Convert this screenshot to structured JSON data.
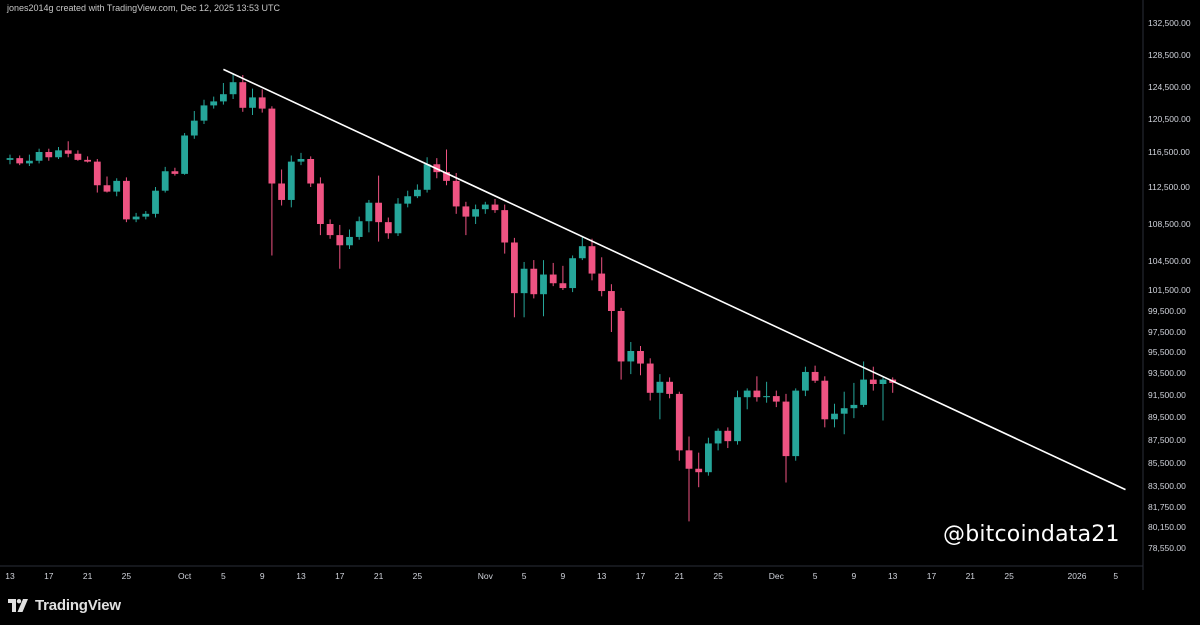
{
  "header": {
    "note": "jones2014g created with TradingView.com, Dec 12, 2025 13:53 UTC"
  },
  "watermark": {
    "handle": "@bitcoindata21"
  },
  "footer": {
    "brand": "TradingView",
    "logo_icon": "tradingview-logo-icon"
  },
  "colors": {
    "up": "#26a69a",
    "down": "#ef5382",
    "trendline": "#ffffff",
    "background": "#000000",
    "text": "#d1d4dc"
  },
  "chart_data": {
    "type": "candlestick",
    "title": "",
    "xlabel": "",
    "ylabel": "",
    "ylim": [
      76500,
      134500
    ],
    "y_ticks": [
      {
        "label": "132,500.00",
        "value": 132500
      },
      {
        "label": "128,500.00",
        "value": 128500
      },
      {
        "label": "124,500.00",
        "value": 124500
      },
      {
        "label": "120,500.00",
        "value": 120500
      },
      {
        "label": "116,500.00",
        "value": 116500
      },
      {
        "label": "112,500.00",
        "value": 112500
      },
      {
        "label": "108,500.00",
        "value": 108500
      },
      {
        "label": "104,500.00",
        "value": 104500
      },
      {
        "label": "101,500.00",
        "value": 101500
      },
      {
        "label": "99,500.00",
        "value": 99500
      },
      {
        "label": "97,500.00",
        "value": 97500
      },
      {
        "label": "95,500.00",
        "value": 95500
      },
      {
        "label": "93,500.00",
        "value": 93500
      },
      {
        "label": "91,500.00",
        "value": 91500
      },
      {
        "label": "89,500.00",
        "value": 89500
      },
      {
        "label": "87,500.00",
        "value": 87500
      },
      {
        "label": "85,500.00",
        "value": 85500
      },
      {
        "label": "83,500.00",
        "value": 83500
      },
      {
        "label": "81,750.00",
        "value": 81750
      },
      {
        "label": "80,150.00",
        "value": 80150
      },
      {
        "label": "78,550.00",
        "value": 78550
      }
    ],
    "x_ticks": [
      {
        "label": "13",
        "day": 0
      },
      {
        "label": "17",
        "day": 4
      },
      {
        "label": "21",
        "day": 8
      },
      {
        "label": "25",
        "day": 12
      },
      {
        "label": "Oct",
        "day": 18
      },
      {
        "label": "5",
        "day": 22
      },
      {
        "label": "9",
        "day": 26
      },
      {
        "label": "13",
        "day": 30
      },
      {
        "label": "17",
        "day": 34
      },
      {
        "label": "21",
        "day": 38
      },
      {
        "label": "25",
        "day": 42
      },
      {
        "label": "Nov",
        "day": 49
      },
      {
        "label": "5",
        "day": 53
      },
      {
        "label": "9",
        "day": 57
      },
      {
        "label": "13",
        "day": 61
      },
      {
        "label": "17",
        "day": 65
      },
      {
        "label": "21",
        "day": 69
      },
      {
        "label": "25",
        "day": 73
      },
      {
        "label": "Dec",
        "day": 79
      },
      {
        "label": "5",
        "day": 83
      },
      {
        "label": "9",
        "day": 87
      },
      {
        "label": "13",
        "day": 91
      },
      {
        "label": "17",
        "day": 95
      },
      {
        "label": "21",
        "day": 99
      },
      {
        "label": "25",
        "day": 103
      },
      {
        "label": "2026",
        "day": 110
      },
      {
        "label": "5",
        "day": 114
      }
    ],
    "candles": [
      {
        "day": 0,
        "o": 115600,
        "h": 116200,
        "l": 115100,
        "c": 115800
      },
      {
        "day": 1,
        "o": 115800,
        "h": 116100,
        "l": 115000,
        "c": 115200
      },
      {
        "day": 2,
        "o": 115200,
        "h": 116200,
        "l": 114900,
        "c": 115500
      },
      {
        "day": 3,
        "o": 115500,
        "h": 116900,
        "l": 115200,
        "c": 116500
      },
      {
        "day": 4,
        "o": 116500,
        "h": 116900,
        "l": 115500,
        "c": 115900
      },
      {
        "day": 5,
        "o": 115900,
        "h": 117100,
        "l": 115700,
        "c": 116700
      },
      {
        "day": 6,
        "o": 116700,
        "h": 117800,
        "l": 115900,
        "c": 116300
      },
      {
        "day": 7,
        "o": 116300,
        "h": 116700,
        "l": 115500,
        "c": 115600
      },
      {
        "day": 8,
        "o": 115600,
        "h": 116000,
        "l": 115300,
        "c": 115400
      },
      {
        "day": 9,
        "o": 115400,
        "h": 115700,
        "l": 111900,
        "c": 112700
      },
      {
        "day": 10,
        "o": 112700,
        "h": 113700,
        "l": 111900,
        "c": 112000
      },
      {
        "day": 11,
        "o": 112000,
        "h": 113500,
        "l": 111500,
        "c": 113200
      },
      {
        "day": 12,
        "o": 113200,
        "h": 113600,
        "l": 108700,
        "c": 109000
      },
      {
        "day": 13,
        "o": 109000,
        "h": 109700,
        "l": 108700,
        "c": 109300
      },
      {
        "day": 14,
        "o": 109300,
        "h": 109900,
        "l": 109000,
        "c": 109600
      },
      {
        "day": 15,
        "o": 109600,
        "h": 112500,
        "l": 109200,
        "c": 112100
      },
      {
        "day": 16,
        "o": 112100,
        "h": 114800,
        "l": 111900,
        "c": 114300
      },
      {
        "day": 17,
        "o": 114300,
        "h": 114700,
        "l": 113800,
        "c": 114000
      },
      {
        "day": 18,
        "o": 114000,
        "h": 118800,
        "l": 113900,
        "c": 118500
      },
      {
        "day": 19,
        "o": 118500,
        "h": 121500,
        "l": 118100,
        "c": 120300
      },
      {
        "day": 20,
        "o": 120300,
        "h": 122900,
        "l": 119900,
        "c": 122200
      },
      {
        "day": 21,
        "o": 122200,
        "h": 123300,
        "l": 121800,
        "c": 122700
      },
      {
        "day": 22,
        "o": 122700,
        "h": 125000,
        "l": 122300,
        "c": 123600
      },
      {
        "day": 23,
        "o": 123600,
        "h": 126200,
        "l": 123000,
        "c": 125100
      },
      {
        "day": 24,
        "o": 125100,
        "h": 126000,
        "l": 121400,
        "c": 121900
      },
      {
        "day": 25,
        "o": 121900,
        "h": 124300,
        "l": 121000,
        "c": 123200
      },
      {
        "day": 26,
        "o": 123200,
        "h": 124200,
        "l": 121300,
        "c": 121800
      },
      {
        "day": 27,
        "o": 121800,
        "h": 122100,
        "l": 105100,
        "c": 112900
      },
      {
        "day": 28,
        "o": 112900,
        "h": 114500,
        "l": 110500,
        "c": 111100
      },
      {
        "day": 29,
        "o": 111100,
        "h": 116100,
        "l": 110300,
        "c": 115400
      },
      {
        "day": 30,
        "o": 115400,
        "h": 116400,
        "l": 115000,
        "c": 115700
      },
      {
        "day": 31,
        "o": 115700,
        "h": 116000,
        "l": 112500,
        "c": 112900
      },
      {
        "day": 32,
        "o": 112900,
        "h": 113600,
        "l": 107300,
        "c": 108500
      },
      {
        "day": 33,
        "o": 108500,
        "h": 109000,
        "l": 106900,
        "c": 107300
      },
      {
        "day": 34,
        "o": 107300,
        "h": 108400,
        "l": 103700,
        "c": 106200
      },
      {
        "day": 35,
        "o": 106200,
        "h": 107900,
        "l": 105800,
        "c": 107100
      },
      {
        "day": 36,
        "o": 107100,
        "h": 109300,
        "l": 106800,
        "c": 108800
      },
      {
        "day": 37,
        "o": 108800,
        "h": 111100,
        "l": 107600,
        "c": 110800
      },
      {
        "day": 38,
        "o": 110800,
        "h": 113800,
        "l": 106600,
        "c": 108700
      },
      {
        "day": 39,
        "o": 108700,
        "h": 109200,
        "l": 106900,
        "c": 107500
      },
      {
        "day": 40,
        "o": 107500,
        "h": 111300,
        "l": 107200,
        "c": 110700
      },
      {
        "day": 41,
        "o": 110700,
        "h": 112100,
        "l": 110300,
        "c": 111500
      },
      {
        "day": 42,
        "o": 111500,
        "h": 112800,
        "l": 111300,
        "c": 112200
      },
      {
        "day": 43,
        "o": 112200,
        "h": 115900,
        "l": 111900,
        "c": 115100
      },
      {
        "day": 44,
        "o": 115100,
        "h": 115800,
        "l": 113500,
        "c": 114200
      },
      {
        "day": 45,
        "o": 114200,
        "h": 116800,
        "l": 112700,
        "c": 113200
      },
      {
        "day": 46,
        "o": 113200,
        "h": 114100,
        "l": 109600,
        "c": 110400
      },
      {
        "day": 47,
        "o": 110400,
        "h": 110900,
        "l": 107300,
        "c": 109300
      },
      {
        "day": 48,
        "o": 109300,
        "h": 110600,
        "l": 108500,
        "c": 110100
      },
      {
        "day": 49,
        "o": 110100,
        "h": 110900,
        "l": 109600,
        "c": 110600
      },
      {
        "day": 50,
        "o": 110600,
        "h": 111200,
        "l": 109700,
        "c": 110000
      },
      {
        "day": 51,
        "o": 110000,
        "h": 110600,
        "l": 105300,
        "c": 106500
      },
      {
        "day": 52,
        "o": 106500,
        "h": 107000,
        "l": 98900,
        "c": 101200
      },
      {
        "day": 53,
        "o": 101200,
        "h": 104400,
        "l": 98900,
        "c": 103700
      },
      {
        "day": 54,
        "o": 103700,
        "h": 104600,
        "l": 100700,
        "c": 101100
      },
      {
        "day": 55,
        "o": 101100,
        "h": 104600,
        "l": 99000,
        "c": 103100
      },
      {
        "day": 56,
        "o": 103100,
        "h": 104300,
        "l": 101900,
        "c": 102200
      },
      {
        "day": 57,
        "o": 102200,
        "h": 104000,
        "l": 101500,
        "c": 101700
      },
      {
        "day": 58,
        "o": 101700,
        "h": 105100,
        "l": 101300,
        "c": 104800
      },
      {
        "day": 59,
        "o": 104800,
        "h": 107200,
        "l": 104600,
        "c": 106100
      },
      {
        "day": 60,
        "o": 106100,
        "h": 106900,
        "l": 102500,
        "c": 103200
      },
      {
        "day": 61,
        "o": 103200,
        "h": 104900,
        "l": 100900,
        "c": 101400
      },
      {
        "day": 62,
        "o": 101400,
        "h": 102100,
        "l": 97500,
        "c": 99500
      },
      {
        "day": 63,
        "o": 99500,
        "h": 99800,
        "l": 92900,
        "c": 94600
      },
      {
        "day": 64,
        "o": 94600,
        "h": 96500,
        "l": 93400,
        "c": 95600
      },
      {
        "day": 65,
        "o": 95600,
        "h": 96100,
        "l": 93300,
        "c": 94400
      },
      {
        "day": 66,
        "o": 94400,
        "h": 94900,
        "l": 91000,
        "c": 91700
      },
      {
        "day": 67,
        "o": 91700,
        "h": 93400,
        "l": 89300,
        "c": 92700
      },
      {
        "day": 68,
        "o": 92700,
        "h": 93100,
        "l": 91200,
        "c": 91600
      },
      {
        "day": 69,
        "o": 91600,
        "h": 91800,
        "l": 85700,
        "c": 86600
      },
      {
        "day": 70,
        "o": 86600,
        "h": 87800,
        "l": 80600,
        "c": 85000
      },
      {
        "day": 71,
        "o": 85000,
        "h": 86400,
        "l": 83400,
        "c": 84700
      },
      {
        "day": 72,
        "o": 84700,
        "h": 87700,
        "l": 84400,
        "c": 87200
      },
      {
        "day": 73,
        "o": 87200,
        "h": 88500,
        "l": 86600,
        "c": 88300
      },
      {
        "day": 74,
        "o": 88300,
        "h": 88600,
        "l": 86800,
        "c": 87400
      },
      {
        "day": 75,
        "o": 87400,
        "h": 91900,
        "l": 87100,
        "c": 91300
      },
      {
        "day": 76,
        "o": 91300,
        "h": 92100,
        "l": 90200,
        "c": 91900
      },
      {
        "day": 77,
        "o": 91900,
        "h": 93200,
        "l": 90900,
        "c": 91300
      },
      {
        "day": 78,
        "o": 91300,
        "h": 92700,
        "l": 90800,
        "c": 91400
      },
      {
        "day": 79,
        "o": 91400,
        "h": 91900,
        "l": 90400,
        "c": 90900
      },
      {
        "day": 80,
        "o": 90900,
        "h": 91600,
        "l": 83800,
        "c": 86100
      },
      {
        "day": 81,
        "o": 86100,
        "h": 92100,
        "l": 85700,
        "c": 91900
      },
      {
        "day": 82,
        "o": 91900,
        "h": 94100,
        "l": 91400,
        "c": 93600
      },
      {
        "day": 83,
        "o": 93600,
        "h": 94200,
        "l": 92600,
        "c": 92800
      },
      {
        "day": 84,
        "o": 92800,
        "h": 93200,
        "l": 88600,
        "c": 89300
      },
      {
        "day": 85,
        "o": 89300,
        "h": 90700,
        "l": 88600,
        "c": 89800
      },
      {
        "day": 86,
        "o": 89800,
        "h": 91800,
        "l": 88000,
        "c": 90300
      },
      {
        "day": 87,
        "o": 90300,
        "h": 92600,
        "l": 89400,
        "c": 90600
      },
      {
        "day": 88,
        "o": 90600,
        "h": 94600,
        "l": 90400,
        "c": 92900
      },
      {
        "day": 89,
        "o": 92900,
        "h": 94100,
        "l": 91900,
        "c": 92500
      },
      {
        "day": 90,
        "o": 92500,
        "h": 93100,
        "l": 89200,
        "c": 92900
      },
      {
        "day": 91,
        "o": 92900,
        "h": 93100,
        "l": 91700,
        "c": 92600
      }
    ],
    "trendline": {
      "start": {
        "day": 22,
        "price": 126700
      },
      "end": {
        "day": 115,
        "price": 83200
      }
    }
  }
}
